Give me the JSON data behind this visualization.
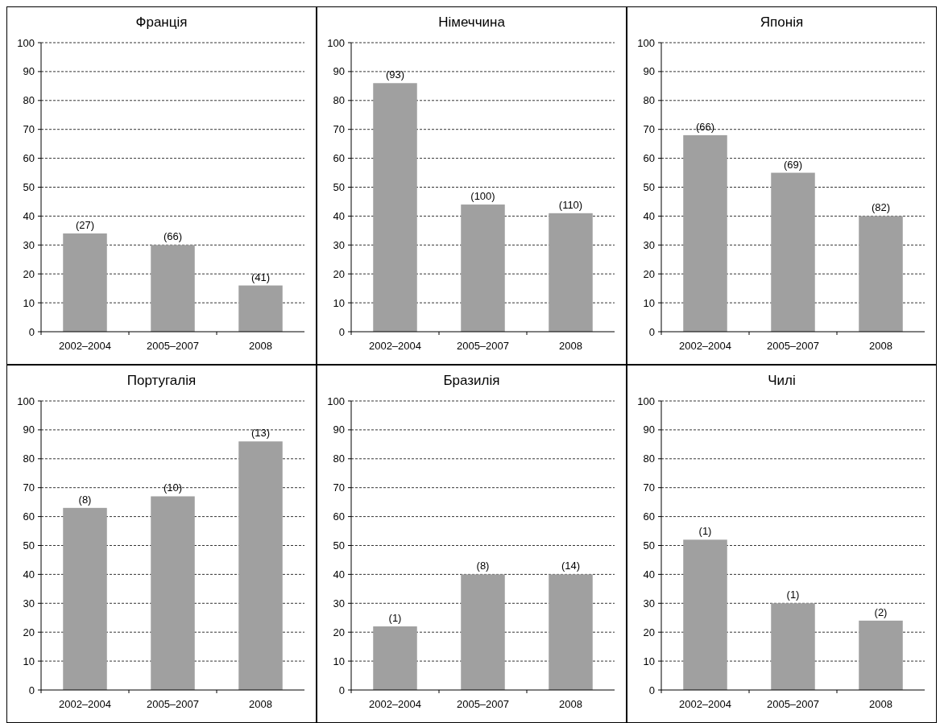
{
  "chart_data": [
    {
      "type": "bar",
      "title": "Франція",
      "categories": [
        "2002–2004",
        "2005–2007",
        "2008"
      ],
      "values": [
        34,
        30,
        16
      ],
      "annotations": [
        {
          "text": "(27)",
          "x": "2002–2004",
          "y": 34
        },
        {
          "text": "(66)",
          "x": "2005–2007",
          "y": 30
        },
        {
          "text": "(41)",
          "x": "2008",
          "y": 16
        }
      ],
      "color": "#a0a0a0",
      "ylim": [
        0,
        100
      ],
      "yticks": [
        0,
        10,
        20,
        30,
        40,
        50,
        60,
        70,
        80,
        90,
        100
      ],
      "grid": "y"
    },
    {
      "type": "bar",
      "title": "Німеччина",
      "categories": [
        "2002–2004",
        "2005–2007",
        "2008"
      ],
      "values": [
        86,
        44,
        41
      ],
      "annotations": [
        {
          "text": "(93)",
          "x": "2002–2004",
          "y": 86
        },
        {
          "text": "(100)",
          "x": "2005–2007",
          "y": 44
        },
        {
          "text": "(110)",
          "x": "2008",
          "y": 41
        }
      ],
      "color": "#a0a0a0",
      "ylim": [
        0,
        100
      ],
      "yticks": [
        0,
        10,
        20,
        30,
        40,
        50,
        60,
        70,
        80,
        90,
        100
      ],
      "grid": "y"
    },
    {
      "type": "bar",
      "title": "Японія",
      "categories": [
        "2002–2004",
        "2005–2007",
        "2008"
      ],
      "values": [
        68,
        55,
        40
      ],
      "annotations": [
        {
          "text": "(66)",
          "x": "2002–2004",
          "y": 68
        },
        {
          "text": "(69)",
          "x": "2005–2007",
          "y": 55
        },
        {
          "text": "(82)",
          "x": "2008",
          "y": 40
        }
      ],
      "color": "#a0a0a0",
      "ylim": [
        0,
        100
      ],
      "yticks": [
        0,
        10,
        20,
        30,
        40,
        50,
        60,
        70,
        80,
        90,
        100
      ],
      "grid": "y"
    },
    {
      "type": "bar",
      "title": "Португалія",
      "categories": [
        "2002–2004",
        "2005–2007",
        "2008"
      ],
      "values": [
        63,
        67,
        86
      ],
      "annotations": [
        {
          "text": "(8)",
          "x": "2002–2004",
          "y": 63
        },
        {
          "text": "(10)",
          "x": "2005–2007",
          "y": 67
        },
        {
          "text": "(13)",
          "x": "2008",
          "y": 86
        }
      ],
      "color": "#a0a0a0",
      "ylim": [
        0,
        100
      ],
      "yticks": [
        0,
        10,
        20,
        30,
        40,
        50,
        60,
        70,
        80,
        90,
        100
      ],
      "grid": "y"
    },
    {
      "type": "bar",
      "title": "Бразилія",
      "categories": [
        "2002–2004",
        "2005–2007",
        "2008"
      ],
      "values": [
        22,
        40,
        40
      ],
      "annotations": [
        {
          "text": "(1)",
          "x": "2002–2004",
          "y": 22
        },
        {
          "text": "(8)",
          "x": "2005–2007",
          "y": 40
        },
        {
          "text": "(14)",
          "x": "2008",
          "y": 40
        }
      ],
      "color": "#a0a0a0",
      "ylim": [
        0,
        100
      ],
      "yticks": [
        0,
        10,
        20,
        30,
        40,
        50,
        60,
        70,
        80,
        90,
        100
      ],
      "grid": "y"
    },
    {
      "type": "bar",
      "title": "Чилі",
      "categories": [
        "2002–2004",
        "2005–2007",
        "2008"
      ],
      "values": [
        52,
        30,
        24
      ],
      "annotations": [
        {
          "text": "(1)",
          "x": "2002–2004",
          "y": 52
        },
        {
          "text": "(1)",
          "x": "2005–2007",
          "y": 30
        },
        {
          "text": "(2)",
          "x": "2008",
          "y": 24
        }
      ],
      "color": "#a0a0a0",
      "ylim": [
        0,
        100
      ],
      "yticks": [
        0,
        10,
        20,
        30,
        40,
        50,
        60,
        70,
        80,
        90,
        100
      ],
      "grid": "y"
    }
  ]
}
